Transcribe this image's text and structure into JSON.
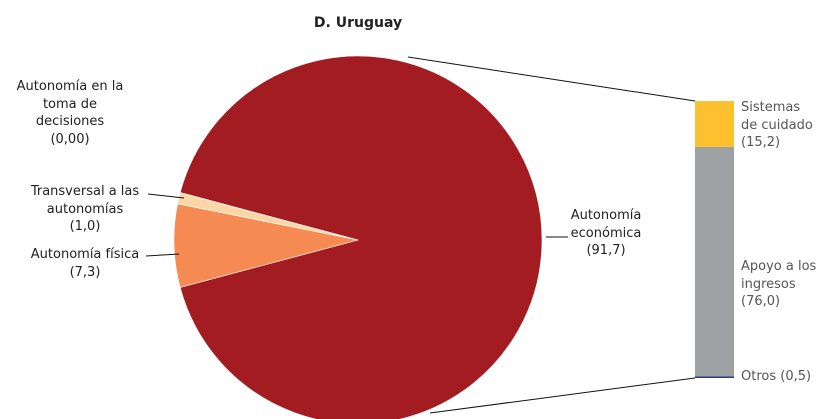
{
  "chart_data": {
    "type": "pie",
    "title": "D. Uruguay",
    "categories": [
      "Autonomía económica",
      "Autonomía física",
      "Transversal a las autonomías",
      "Autonomía en la toma de decisiones"
    ],
    "values": [
      91.7,
      7.3,
      1.0,
      0.0
    ],
    "value_labels": [
      "(91,7)",
      "(7,3)",
      "(1,0)",
      "(0,00)"
    ],
    "colors": [
      "#a31c22",
      "#f58b53",
      "#fbd7a8",
      "#c9a88a"
    ],
    "bar": {
      "categories": [
        "Sistemas de cuidado",
        "Apoyo a los ingresos",
        "Otros"
      ],
      "values": [
        15.2,
        76.0,
        0.5
      ],
      "value_labels": [
        "(15,2)",
        "(76,0)",
        "(0,5)"
      ],
      "colors": [
        "#fdc130",
        "#9ea1a4",
        "#2e3a87"
      ]
    }
  }
}
